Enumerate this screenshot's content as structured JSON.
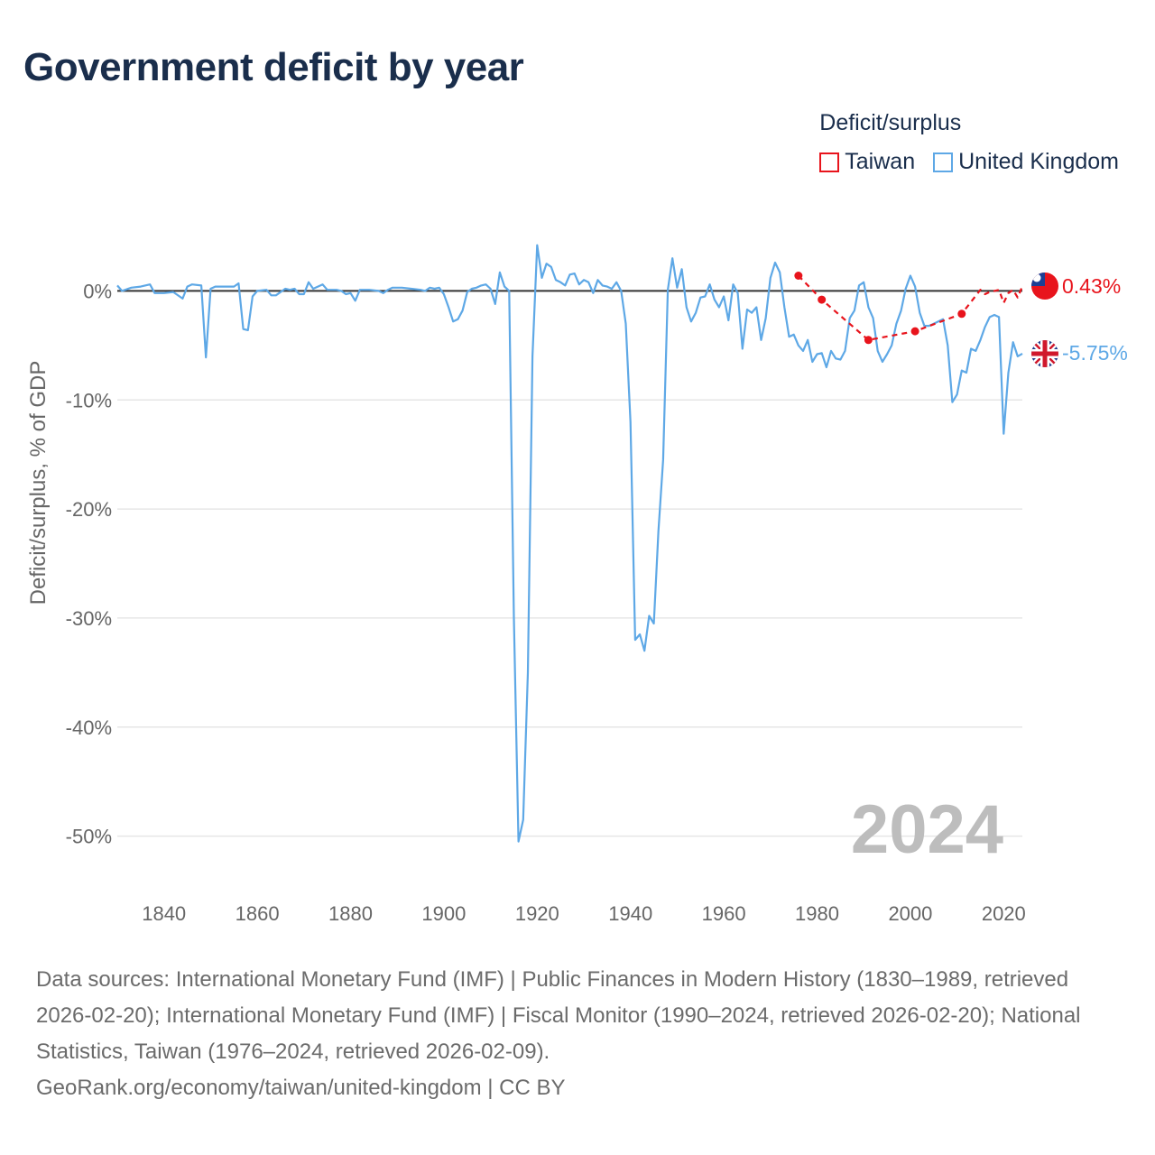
{
  "title": "Government deficit by year",
  "legend": {
    "title": "Deficit/surplus",
    "items": [
      {
        "label": "Taiwan",
        "color": "#e8141c"
      },
      {
        "label": "United Kingdom",
        "color": "#5ea8e6"
      }
    ]
  },
  "year_label": "2024",
  "footer": {
    "sources": "Data sources: International Monetary Fund (IMF) | Public Finances in Modern History (1830–1989, retrieved 2026-02-20); International Monetary Fund (IMF) | Fiscal Monitor (1990–2024, retrieved 2026-02-20); National Statistics, Taiwan (1976–2024, retrieved 2026-02-09).",
    "link": "GeoRank.org/economy/taiwan/united-kingdom | CC BY"
  },
  "chart_data": {
    "type": "line",
    "title": "Government deficit by year",
    "xlabel": "",
    "ylabel": "Deficit/surplus, % of GDP",
    "xlim": [
      1830,
      2024
    ],
    "ylim": [
      -55,
      5
    ],
    "x_ticks": [
      1840,
      1860,
      1880,
      1900,
      1920,
      1940,
      1960,
      1980,
      2000,
      2020
    ],
    "x_tick_labels": [
      "1840",
      "1860",
      "1880",
      "1900",
      "1920",
      "1940",
      "1960",
      "1980",
      "2000",
      "2020"
    ],
    "y_ticks": [
      0,
      -10,
      -20,
      -30,
      -40,
      -50
    ],
    "y_tick_labels": [
      "0%",
      "-10%",
      "-20%",
      "-30%",
      "-40%",
      "-50%"
    ],
    "series": [
      {
        "name": "Taiwan",
        "color": "#e8141c",
        "style": "dashed",
        "end_label": "0.43%",
        "points": [
          [
            1976,
            1.4
          ],
          [
            1981,
            -0.8
          ],
          [
            1991,
            -4.5
          ],
          [
            2001,
            -3.7
          ],
          [
            2011,
            -2.1
          ],
          [
            2015,
            0.1
          ],
          [
            2016,
            -0.3
          ],
          [
            2017,
            -0.1
          ],
          [
            2018,
            0.0
          ],
          [
            2019,
            0.1
          ],
          [
            2020,
            -1.1
          ],
          [
            2021,
            -0.2
          ],
          [
            2022,
            0.1
          ],
          [
            2023,
            -0.6
          ],
          [
            2024,
            0.43
          ]
        ],
        "markers_at": [
          1976,
          1981,
          1991,
          2001,
          2011
        ]
      },
      {
        "name": "United Kingdom",
        "color": "#5ea8e6",
        "style": "solid",
        "end_label": "-5.75%",
        "points": [
          [
            1830,
            0.5
          ],
          [
            1831,
            0.0
          ],
          [
            1833,
            0.3
          ],
          [
            1835,
            0.4
          ],
          [
            1837,
            0.6
          ],
          [
            1838,
            -0.2
          ],
          [
            1840,
            -0.2
          ],
          [
            1842,
            -0.1
          ],
          [
            1844,
            -0.7
          ],
          [
            1845,
            0.4
          ],
          [
            1846,
            0.6
          ],
          [
            1848,
            0.5
          ],
          [
            1849,
            -6.1
          ],
          [
            1850,
            0.2
          ],
          [
            1851,
            0.4
          ],
          [
            1853,
            0.4
          ],
          [
            1855,
            0.4
          ],
          [
            1856,
            0.7
          ],
          [
            1857,
            -3.5
          ],
          [
            1858,
            -3.6
          ],
          [
            1859,
            -0.5
          ],
          [
            1860,
            0.0
          ],
          [
            1862,
            0.1
          ],
          [
            1863,
            -0.4
          ],
          [
            1864,
            -0.4
          ],
          [
            1866,
            0.2
          ],
          [
            1867,
            0.1
          ],
          [
            1868,
            0.2
          ],
          [
            1869,
            -0.3
          ],
          [
            1870,
            -0.3
          ],
          [
            1871,
            0.8
          ],
          [
            1872,
            0.2
          ],
          [
            1874,
            0.6
          ],
          [
            1875,
            0.1
          ],
          [
            1877,
            0.1
          ],
          [
            1878,
            0.0
          ],
          [
            1879,
            -0.3
          ],
          [
            1880,
            -0.2
          ],
          [
            1881,
            -0.9
          ],
          [
            1882,
            0.1
          ],
          [
            1884,
            0.1
          ],
          [
            1886,
            0.0
          ],
          [
            1887,
            -0.2
          ],
          [
            1888,
            0.1
          ],
          [
            1889,
            0.3
          ],
          [
            1891,
            0.3
          ],
          [
            1893,
            0.2
          ],
          [
            1895,
            0.1
          ],
          [
            1896,
            0.0
          ],
          [
            1897,
            0.3
          ],
          [
            1898,
            0.2
          ],
          [
            1899,
            0.3
          ],
          [
            1900,
            -0.3
          ],
          [
            1901,
            -1.5
          ],
          [
            1902,
            -2.8
          ],
          [
            1903,
            -2.6
          ],
          [
            1904,
            -1.8
          ],
          [
            1905,
            -0.1
          ],
          [
            1906,
            0.2
          ],
          [
            1907,
            0.3
          ],
          [
            1908,
            0.5
          ],
          [
            1909,
            0.6
          ],
          [
            1910,
            0.2
          ],
          [
            1911,
            -1.2
          ],
          [
            1912,
            1.7
          ],
          [
            1913,
            0.4
          ],
          [
            1914,
            0.0
          ],
          [
            1915,
            -30.0
          ],
          [
            1916,
            -50.5
          ],
          [
            1917,
            -48.5
          ],
          [
            1918,
            -35.0
          ],
          [
            1919,
            -6.0
          ],
          [
            1920,
            4.2
          ],
          [
            1921,
            1.2
          ],
          [
            1922,
            2.5
          ],
          [
            1923,
            2.2
          ],
          [
            1924,
            1.0
          ],
          [
            1925,
            0.8
          ],
          [
            1926,
            0.5
          ],
          [
            1927,
            1.5
          ],
          [
            1928,
            1.6
          ],
          [
            1929,
            0.6
          ],
          [
            1930,
            1.0
          ],
          [
            1931,
            0.8
          ],
          [
            1932,
            -0.2
          ],
          [
            1933,
            1.0
          ],
          [
            1934,
            0.5
          ],
          [
            1935,
            0.4
          ],
          [
            1936,
            0.2
          ],
          [
            1937,
            0.8
          ],
          [
            1938,
            0.0
          ],
          [
            1939,
            -3.0
          ],
          [
            1940,
            -12.0
          ],
          [
            1941,
            -32.0
          ],
          [
            1942,
            -31.5
          ],
          [
            1943,
            -33.0
          ],
          [
            1944,
            -29.8
          ],
          [
            1945,
            -30.5
          ],
          [
            1946,
            -22.0
          ],
          [
            1947,
            -15.5
          ],
          [
            1948,
            0.1
          ],
          [
            1949,
            3.0
          ],
          [
            1950,
            0.3
          ],
          [
            1951,
            2.0
          ],
          [
            1952,
            -1.5
          ],
          [
            1953,
            -2.8
          ],
          [
            1954,
            -2.0
          ],
          [
            1955,
            -0.6
          ],
          [
            1956,
            -0.5
          ],
          [
            1957,
            0.6
          ],
          [
            1958,
            -0.8
          ],
          [
            1959,
            -1.5
          ],
          [
            1960,
            -0.5
          ],
          [
            1961,
            -2.7
          ],
          [
            1962,
            0.6
          ],
          [
            1963,
            -0.2
          ],
          [
            1964,
            -5.3
          ],
          [
            1965,
            -1.7
          ],
          [
            1966,
            -2.0
          ],
          [
            1967,
            -1.5
          ],
          [
            1968,
            -4.5
          ],
          [
            1969,
            -2.5
          ],
          [
            1970,
            1.2
          ],
          [
            1971,
            2.6
          ],
          [
            1972,
            1.7
          ],
          [
            1973,
            -1.5
          ],
          [
            1974,
            -4.2
          ],
          [
            1975,
            -4.0
          ],
          [
            1976,
            -5.0
          ],
          [
            1977,
            -5.5
          ],
          [
            1978,
            -4.5
          ],
          [
            1979,
            -6.5
          ],
          [
            1980,
            -5.8
          ],
          [
            1981,
            -5.7
          ],
          [
            1982,
            -7.0
          ],
          [
            1983,
            -5.5
          ],
          [
            1984,
            -6.2
          ],
          [
            1985,
            -6.3
          ],
          [
            1986,
            -5.5
          ],
          [
            1987,
            -2.5
          ],
          [
            1988,
            -1.8
          ],
          [
            1989,
            0.5
          ],
          [
            1990,
            0.8
          ],
          [
            1991,
            -1.5
          ],
          [
            1992,
            -2.5
          ],
          [
            1993,
            -5.5
          ],
          [
            1994,
            -6.5
          ],
          [
            1995,
            -5.8
          ],
          [
            1996,
            -5.0
          ],
          [
            1997,
            -3.0
          ],
          [
            1998,
            -1.8
          ],
          [
            1999,
            0.2
          ],
          [
            2000,
            1.4
          ],
          [
            2001,
            0.4
          ],
          [
            2002,
            -2.0
          ],
          [
            2003,
            -3.2
          ],
          [
            2004,
            -3.2
          ],
          [
            2005,
            -3.0
          ],
          [
            2006,
            -2.8
          ],
          [
            2007,
            -2.6
          ],
          [
            2008,
            -5.0
          ],
          [
            2009,
            -10.2
          ],
          [
            2010,
            -9.5
          ],
          [
            2011,
            -7.3
          ],
          [
            2012,
            -7.5
          ],
          [
            2013,
            -5.3
          ],
          [
            2014,
            -5.5
          ],
          [
            2015,
            -4.5
          ],
          [
            2016,
            -3.3
          ],
          [
            2017,
            -2.4
          ],
          [
            2018,
            -2.2
          ],
          [
            2019,
            -2.4
          ],
          [
            2020,
            -13.1
          ],
          [
            2021,
            -7.5
          ],
          [
            2022,
            -4.7
          ],
          [
            2023,
            -6.0
          ],
          [
            2024,
            -5.75
          ]
        ]
      }
    ]
  }
}
